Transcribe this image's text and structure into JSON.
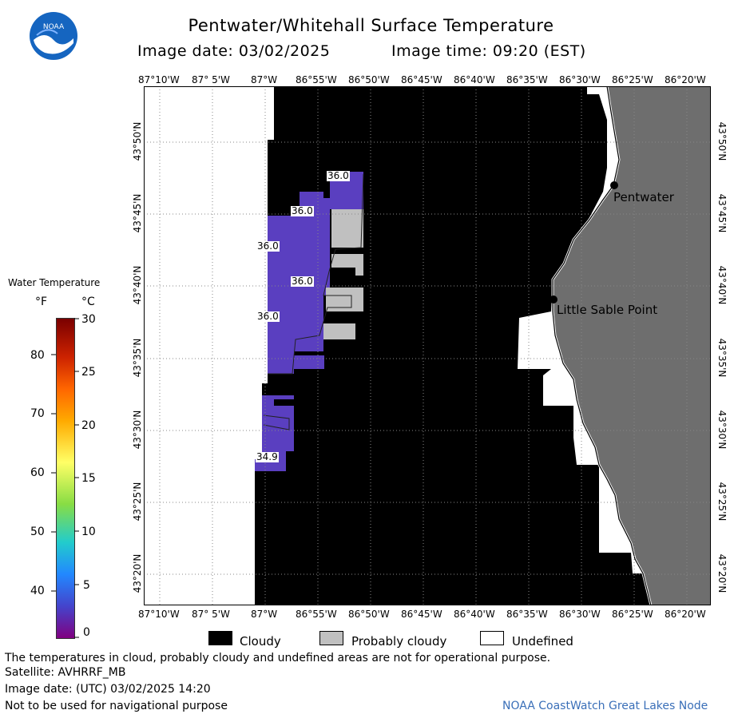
{
  "header": {
    "logo_text": "NOAA",
    "title": "Pentwater/Whitehall Surface Temperature",
    "image_date": "Image date: 03/02/2025",
    "image_time": "Image time: 09:20 (EST)"
  },
  "axes": {
    "lon_ticks": [
      "87°10'W",
      "87° 5'W",
      "87°W",
      "86°55'W",
      "86°50'W",
      "86°45'W",
      "86°40'W",
      "86°35'W",
      "86°30'W",
      "86°25'W",
      "86°20'W"
    ],
    "lat_ticks": [
      "43°50'N",
      "43°45'N",
      "43°40'N",
      "43°35'N",
      "43°30'N",
      "43°25'N",
      "43°20'N"
    ]
  },
  "map": {
    "temperature_labels": [
      "36.0",
      "36.0",
      "36.0",
      "36.0",
      "36.0",
      "34.9"
    ],
    "places": [
      "Pentwater",
      "Little Sable Point"
    ]
  },
  "colorbar": {
    "title": "Water Temperature",
    "unit_f": "°F",
    "unit_c": "°C",
    "f_ticks": [
      "80",
      "70",
      "60",
      "50",
      "40"
    ],
    "c_ticks": [
      "30",
      "25",
      "20",
      "15",
      "10",
      "5",
      "0"
    ]
  },
  "legend": {
    "cloudy": "Cloudy",
    "probably_cloudy": "Probably cloudy",
    "undefined": "Undefined"
  },
  "footer": {
    "disclaimer": "The temperatures in cloud, probably cloudy and undefined areas are not for operational purpose.",
    "satellite": "Satellite: AVHRRF_MB",
    "utc_date": "Image date: (UTC) 03/02/2025  14:20",
    "nav_warning": "Not to be used for navigational purpose",
    "credit": "NOAA CoastWatch Great Lakes Node"
  },
  "colors": {
    "water": "#5a3fc0",
    "land": "#6e6e6e",
    "cloud": "#000000",
    "probably_cloudy": "#c0c0c0",
    "undefined": "#ffffff",
    "credit": "#3a6fb8"
  }
}
